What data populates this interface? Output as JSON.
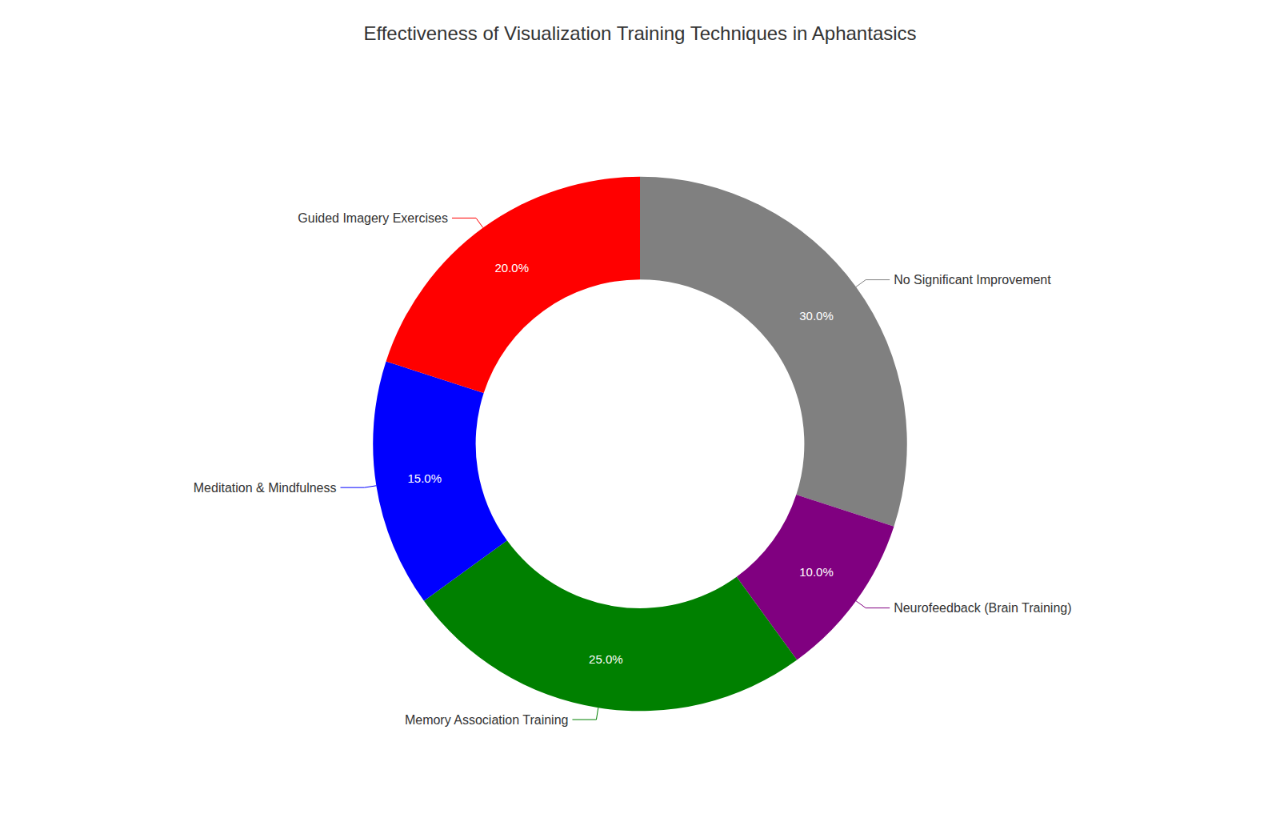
{
  "chart_data": {
    "type": "pie",
    "title": "Effectiveness of Visualization Training Techniques in Aphantasics",
    "categories": [
      "No Significant Improvement",
      "Neurofeedback (Brain Training)",
      "Memory Association Training",
      "Meditation & Mindfulness",
      "Guided Imagery Exercises"
    ],
    "values": [
      30.0,
      10.0,
      25.0,
      15.0,
      20.0
    ],
    "value_labels": [
      "30.0%",
      "10.0%",
      "25.0%",
      "15.0%",
      "20.0%"
    ],
    "colors": [
      "#808080",
      "#800080",
      "#008000",
      "#0000FF",
      "#FF0000"
    ],
    "data_labels": true
  }
}
